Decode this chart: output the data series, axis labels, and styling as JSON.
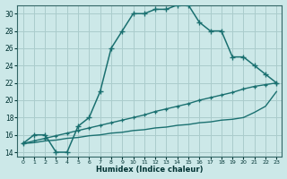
{
  "xlabel": "Humidex (Indice chaleur)",
  "bg_color": "#cce8e8",
  "grid_color": "#aacccc",
  "line_color": "#1a7070",
  "xlim_min": -0.5,
  "xlim_max": 23.5,
  "ylim_min": 13.5,
  "ylim_max": 31.0,
  "yticks": [
    14,
    16,
    18,
    20,
    22,
    24,
    26,
    28,
    30
  ],
  "xticks": [
    0,
    1,
    2,
    3,
    4,
    5,
    6,
    7,
    8,
    9,
    10,
    11,
    12,
    13,
    14,
    15,
    16,
    17,
    18,
    19,
    20,
    21,
    22,
    23
  ],
  "curve1_x": [
    0,
    1,
    2,
    3,
    4,
    5,
    6,
    7,
    8,
    9,
    10,
    11,
    12,
    13,
    14,
    15,
    16,
    17,
    18,
    19,
    20,
    21,
    22,
    23
  ],
  "curve1_y": [
    15,
    16,
    16,
    14,
    14,
    17,
    18,
    21,
    26,
    28,
    30,
    30,
    30.5,
    30.5,
    31,
    31,
    29,
    28,
    28,
    25,
    25,
    24,
    23,
    22
  ],
  "curve2_x": [
    0,
    1,
    2,
    3,
    4,
    5,
    6,
    7,
    8,
    9,
    10,
    11,
    12,
    13,
    14,
    15,
    16,
    17,
    18,
    19,
    20,
    21,
    22,
    23
  ],
  "curve2_y": [
    15,
    15.3,
    15.6,
    15.9,
    16.2,
    16.5,
    16.8,
    17.1,
    17.4,
    17.7,
    18.0,
    18.3,
    18.7,
    19.0,
    19.3,
    19.6,
    20.0,
    20.3,
    20.6,
    20.9,
    21.3,
    21.6,
    21.8,
    22.0
  ],
  "curve3_x": [
    0,
    1,
    2,
    3,
    4,
    5,
    6,
    7,
    8,
    9,
    10,
    11,
    12,
    13,
    14,
    15,
    16,
    17,
    18,
    19,
    20,
    21,
    22,
    23
  ],
  "curve3_y": [
    15,
    15.1,
    15.3,
    15.4,
    15.6,
    15.7,
    15.9,
    16.0,
    16.2,
    16.3,
    16.5,
    16.6,
    16.8,
    16.9,
    17.1,
    17.2,
    17.4,
    17.5,
    17.7,
    17.8,
    18.0,
    18.6,
    19.3,
    21.0
  ]
}
